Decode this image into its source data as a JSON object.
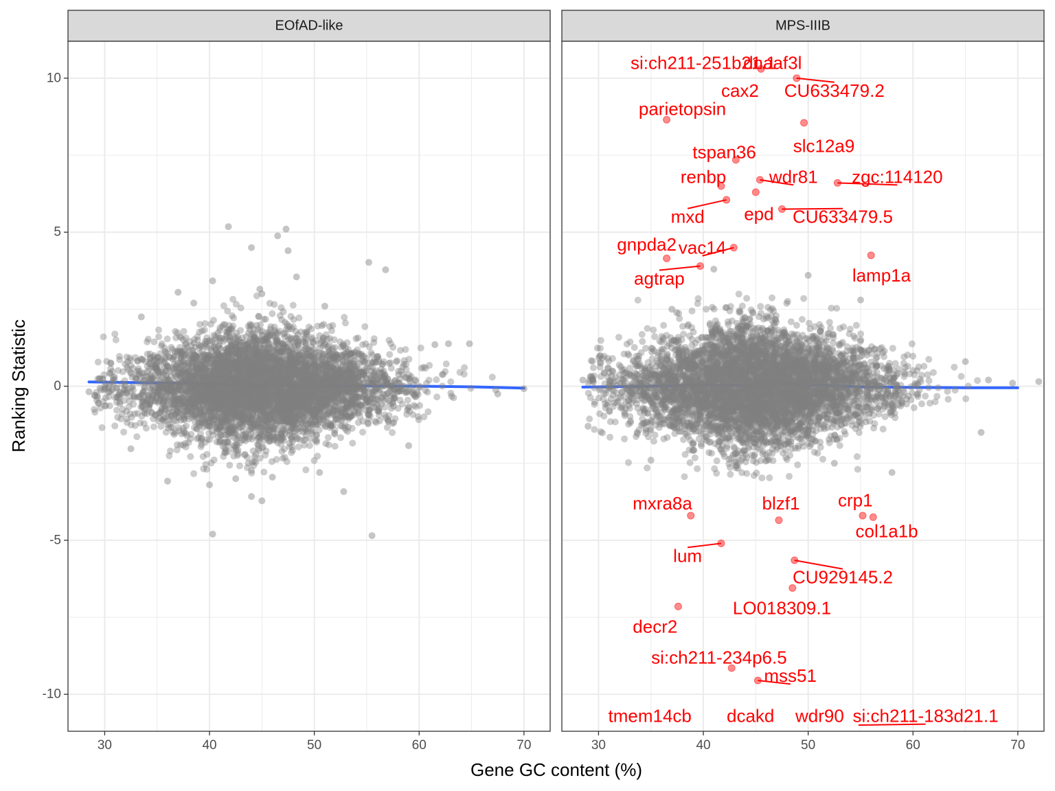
{
  "chart_data": {
    "type": "scatter",
    "xlabel": "Gene GC content (%)",
    "ylabel": "Ranking Statistic",
    "xlim": [
      26.5,
      72.5
    ],
    "ylim": [
      -11.2,
      11.2
    ],
    "x_ticks": [
      30,
      40,
      50,
      60,
      70
    ],
    "y_ticks": [
      -10,
      -5,
      0,
      5,
      10
    ],
    "grid": true,
    "point_color": "#7f7f7f",
    "highlight_color": "#ff0000",
    "smooth_color": "#3366ff",
    "panels": [
      {
        "name": "EOfAD-like",
        "smooth": [
          [
            28.5,
            0.14
          ],
          [
            35,
            0.11
          ],
          [
            40,
            0.08
          ],
          [
            45,
            0.04
          ],
          [
            50,
            0.02
          ],
          [
            55,
            0.01
          ],
          [
            60,
            0.0
          ],
          [
            65,
            -0.02
          ],
          [
            70,
            -0.06
          ]
        ],
        "outliers": [
          [
            41.8,
            5.18
          ],
          [
            47.3,
            5.1
          ],
          [
            46.5,
            4.88
          ],
          [
            44,
            4.5
          ],
          [
            47.5,
            4.4
          ],
          [
            55.2,
            4.02
          ],
          [
            56.8,
            3.78
          ],
          [
            48.3,
            3.55
          ],
          [
            40.3,
            3.42
          ],
          [
            44.8,
            3.15
          ],
          [
            45,
            3.0
          ],
          [
            37,
            3.05
          ],
          [
            33.5,
            2.25
          ],
          [
            51,
            2.6
          ],
          [
            38.5,
            2.7
          ],
          [
            40.3,
            -4.8
          ],
          [
            55.5,
            -4.85
          ],
          [
            45,
            -3.72
          ],
          [
            44,
            -3.58
          ],
          [
            52.8,
            -3.42
          ],
          [
            40,
            -3.2
          ],
          [
            36,
            -3.08
          ],
          [
            42.5,
            -3.0
          ],
          [
            46,
            -2.95
          ],
          [
            50.5,
            -2.8
          ],
          [
            32.5,
            -2.03
          ],
          [
            28.5,
            -0.18
          ],
          [
            70,
            -0.08
          ],
          [
            67.5,
            -0.25
          ],
          [
            64.8,
            1.38
          ],
          [
            61.5,
            1.35
          ],
          [
            59,
            -1.93
          ],
          [
            29.5,
            0.25
          ],
          [
            62.8,
            1.38
          ]
        ]
      },
      {
        "name": "MPS-IIIB",
        "smooth": [
          [
            28.5,
            -0.03
          ],
          [
            35,
            0.0
          ],
          [
            40,
            0.04
          ],
          [
            44,
            0.02
          ],
          [
            47,
            0.1
          ],
          [
            50,
            0.05
          ],
          [
            55,
            -0.02
          ],
          [
            60,
            -0.04
          ],
          [
            65,
            -0.05
          ],
          [
            70,
            -0.05
          ]
        ],
        "outliers": [
          [
            72,
            0.15
          ],
          [
            65,
            0.8
          ],
          [
            67.2,
            0.2
          ],
          [
            69.5,
            0.1
          ],
          [
            28.5,
            0.2
          ],
          [
            29,
            -1.3
          ],
          [
            66.5,
            -1.5
          ],
          [
            55,
            2.8
          ],
          [
            50,
            3.6
          ],
          [
            41,
            3.8
          ],
          [
            58,
            -2.8
          ],
          [
            35,
            -2.4
          ],
          [
            37,
            2.5
          ],
          [
            52.5,
            -2.5
          ]
        ],
        "highlighted": [
          {
            "gene": "si:ch211-251b21.1",
            "x": 40,
            "y": 11.0
          },
          {
            "gene": "dnaaf3l",
            "x": 48.5,
            "y": 11.0
          },
          {
            "gene": "cax2",
            "x": 45.5,
            "y": 10.3
          },
          {
            "gene": "CU633479.2",
            "x": 48.9,
            "y": 10.0
          },
          {
            "gene": "parietopsin",
            "x": 36.5,
            "y": 8.65
          },
          {
            "gene": "slc12a9",
            "x": 49.6,
            "y": 8.55
          },
          {
            "gene": "tspan36",
            "x": 43.1,
            "y": 7.35
          },
          {
            "gene": "renbp",
            "x": 41.7,
            "y": 6.5
          },
          {
            "gene": "wdr81",
            "x": 45.4,
            "y": 6.7
          },
          {
            "gene": "zgc:114120",
            "x": 52.8,
            "y": 6.6
          },
          {
            "gene": "mxd",
            "x": 42.2,
            "y": 6.05
          },
          {
            "gene": "epd",
            "x": 45.0,
            "y": 6.3
          },
          {
            "gene": "CU633479.5",
            "x": 47.5,
            "y": 5.75
          },
          {
            "gene": "gnpda2",
            "x": 36.5,
            "y": 4.15
          },
          {
            "gene": "vac14",
            "x": 42.9,
            "y": 4.5
          },
          {
            "gene": "agtrap",
            "x": 39.7,
            "y": 3.9
          },
          {
            "gene": "lamp1a",
            "x": 56,
            "y": 4.25
          },
          {
            "gene": "mxra8a",
            "x": 38.8,
            "y": -4.2
          },
          {
            "gene": "blzf1",
            "x": 47.2,
            "y": -4.35
          },
          {
            "gene": "crp1",
            "x": 55.2,
            "y": -4.2
          },
          {
            "gene": "col1a1b",
            "x": 56.2,
            "y": -4.25
          },
          {
            "gene": "lum",
            "x": 41.7,
            "y": -5.1
          },
          {
            "gene": "CU929145.2",
            "x": 48.7,
            "y": -5.65
          },
          {
            "gene": "LO018309.1",
            "x": 48.5,
            "y": -6.55
          },
          {
            "gene": "decr2",
            "x": 37.6,
            "y": -7.15
          },
          {
            "gene": "si:ch211-234p6.5",
            "x": 42.7,
            "y": -9.15
          },
          {
            "gene": "mss51",
            "x": 45.2,
            "y": -9.55
          },
          {
            "gene": "tmem14cb",
            "x": 37.5,
            "y": -11.0
          },
          {
            "gene": "dcakd",
            "x": 45.2,
            "y": -11.0
          },
          {
            "gene": "wdr90",
            "x": 51.5,
            "y": -11.0
          },
          {
            "gene": "si:ch211-183d21.1",
            "x": 54.8,
            "y": -11.0
          }
        ]
      }
    ]
  }
}
